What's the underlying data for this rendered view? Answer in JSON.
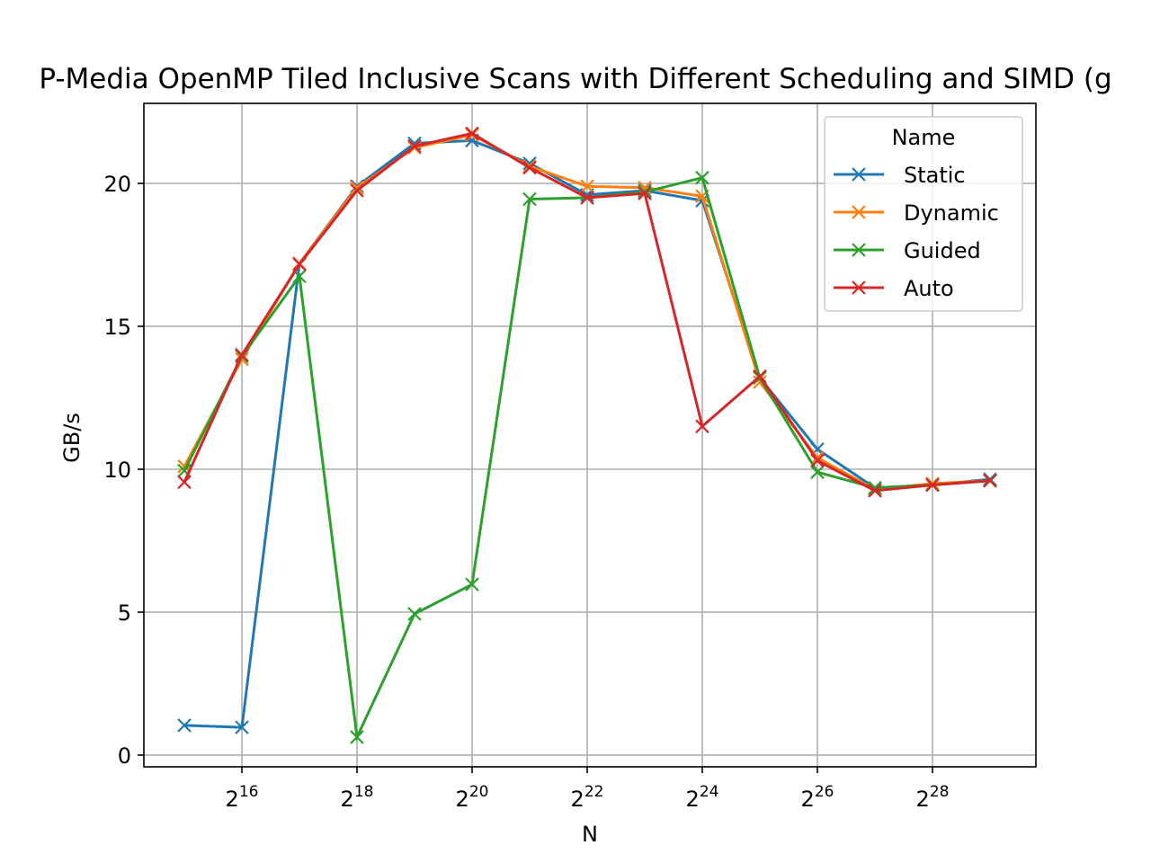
{
  "chart_data": {
    "type": "line",
    "title": "P-Media OpenMP Tiled Inclusive Scans with Different Scheduling and SIMD (g",
    "x_label": "N",
    "y_label": "GB/s",
    "x": [
      32768,
      65536,
      131072,
      262144,
      524288,
      1048576,
      2097152,
      4194304,
      8388608,
      16777216,
      33554432,
      67108864,
      134217728,
      268435456,
      536870912
    ],
    "x_log_base": 2,
    "xlim": [
      20128,
      932800000
    ],
    "xticks": [
      {
        "value": 65536,
        "label": "2^16"
      },
      {
        "value": 262144,
        "label": "2^18"
      },
      {
        "value": 1048576,
        "label": "2^20"
      },
      {
        "value": 4194304,
        "label": "2^22"
      },
      {
        "value": 16777216,
        "label": "2^24"
      },
      {
        "value": 67108864,
        "label": "2^26"
      },
      {
        "value": 268435456,
        "label": "2^28"
      }
    ],
    "ylim": [
      -0.41,
      22.8
    ],
    "yticks": [
      0,
      5,
      10,
      15,
      20
    ],
    "grid": true,
    "legend_title": "Name",
    "legend_position": "upper right",
    "series": [
      {
        "name": "Static",
        "color": "#1f77b4",
        "values": [
          1.04,
          0.97,
          17.2,
          19.9,
          21.4,
          21.5,
          20.7,
          19.6,
          19.75,
          19.4,
          13.2,
          10.7,
          9.35,
          9.45,
          9.65
        ]
      },
      {
        "name": "Dynamic",
        "color": "#ff7f0e",
        "values": [
          10.1,
          13.85,
          17.2,
          19.85,
          21.25,
          21.7,
          20.6,
          19.9,
          19.85,
          19.55,
          13.05,
          10.4,
          9.3,
          9.5,
          9.6
        ]
      },
      {
        "name": "Guided",
        "color": "#2ca02c",
        "values": [
          9.95,
          13.95,
          16.75,
          0.63,
          4.94,
          5.97,
          19.45,
          19.5,
          19.7,
          20.2,
          13.2,
          9.9,
          9.35,
          9.45,
          9.6
        ]
      },
      {
        "name": "Auto",
        "color": "#d62728",
        "values": [
          9.55,
          14.0,
          17.17,
          19.75,
          21.3,
          21.75,
          20.55,
          19.5,
          19.65,
          11.5,
          13.25,
          10.3,
          9.25,
          9.45,
          9.6
        ]
      }
    ]
  }
}
